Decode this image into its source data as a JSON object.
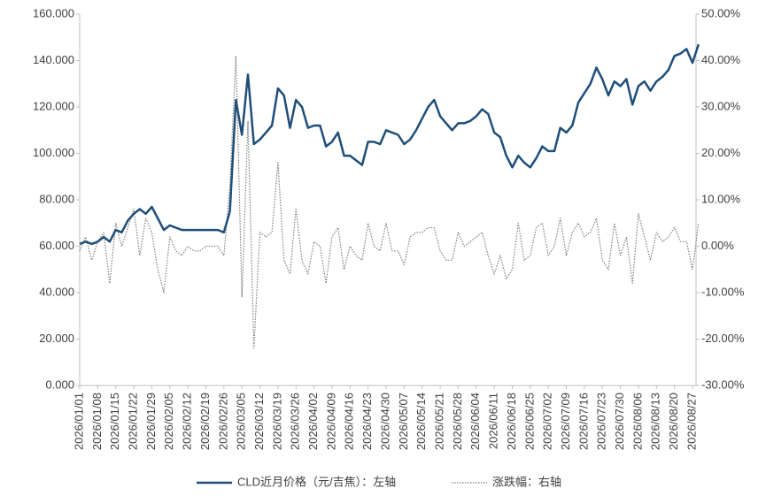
{
  "chart_data": {
    "type": "line",
    "categories": [
      "2026/01/01",
      null,
      null,
      "2026/01/08",
      null,
      null,
      "2026/01/15",
      null,
      null,
      "2026/01/22",
      null,
      null,
      "2026/01/29",
      null,
      null,
      "2026/02/05",
      null,
      null,
      "2026/02/12",
      null,
      null,
      "2026/02/19",
      null,
      null,
      "2026/02/26",
      null,
      null,
      "2026/03/05",
      null,
      null,
      "2026/03/12",
      null,
      null,
      "2026/03/19",
      null,
      null,
      "2026/03/26",
      null,
      null,
      "2026/04/02",
      null,
      null,
      "2026/04/09",
      null,
      null,
      "2026/04/16",
      null,
      null,
      "2026/04/23",
      null,
      null,
      "2026/04/30",
      null,
      null,
      "2026/05/07",
      null,
      null,
      "2026/05/14",
      null,
      null,
      "2026/05/21",
      null,
      null,
      "2026/05/28",
      null,
      null,
      "2026/06/04",
      null,
      null,
      "2026/06/11",
      null,
      null,
      "2026/06/18",
      null,
      null,
      "2026/06/25",
      null,
      null,
      "2026/07/02",
      null,
      null,
      "2026/07/09",
      null,
      null,
      "2026/07/16",
      null,
      null,
      "2026/07/23",
      null,
      null,
      "2026/07/30",
      null,
      null,
      "2026/08/06",
      null,
      null,
      "2026/08/13",
      null,
      null,
      "2026/08/20",
      null,
      null,
      "2026/08/27",
      null
    ],
    "series": [
      {
        "name": "CLD近月价格（元/吉焦）：左轴",
        "color": "#1f4e79",
        "style": "solid",
        "axis": "y",
        "values": [
          61,
          62,
          61,
          62,
          64,
          62,
          67,
          66,
          71,
          74,
          76,
          74,
          77,
          72,
          67,
          69,
          68,
          67,
          67,
          67,
          67,
          67,
          67,
          67,
          66,
          75,
          123,
          108,
          134,
          104,
          106,
          109,
          112,
          128,
          125,
          111,
          123,
          120,
          111,
          112,
          112,
          103,
          105,
          109,
          99,
          99,
          97,
          95,
          105,
          105,
          104,
          110,
          109,
          108,
          104,
          106,
          110,
          115,
          120,
          123,
          116,
          113,
          110,
          113,
          113,
          114,
          116,
          119,
          117,
          109,
          107,
          99,
          94,
          99,
          96,
          94,
          98,
          103,
          101,
          101,
          111,
          109,
          112,
          122,
          126,
          130,
          137,
          132,
          125,
          131,
          129,
          132,
          121,
          129,
          131,
          127,
          131,
          133,
          136,
          142,
          143,
          145,
          139,
          147
        ]
      },
      {
        "name": "涨跌幅：右轴",
        "color": "#7f7f7f",
        "style": "dotted",
        "axis": "y2",
        "values": [
          -1,
          2,
          -3,
          1,
          3,
          -8,
          5,
          0,
          4,
          8,
          -2,
          6,
          3,
          -5,
          -10,
          2,
          -1,
          -2,
          0,
          -1,
          -1,
          0,
          0,
          0,
          -2,
          13,
          41,
          -11,
          27,
          -22,
          3,
          2,
          3,
          18,
          -3,
          -6,
          8,
          -3,
          -6,
          1,
          0,
          -8,
          2,
          4,
          -5,
          0,
          -2,
          -3,
          5,
          0,
          -1,
          5,
          -1,
          -1,
          -4,
          2,
          3,
          3,
          4,
          4,
          -1,
          -3,
          -3,
          3,
          0,
          1,
          2,
          3,
          -2,
          -6,
          -2,
          -7,
          -5,
          5,
          -3,
          -2,
          4,
          5,
          -2,
          0,
          6,
          -2,
          3,
          5,
          2,
          3,
          6,
          -3,
          -5,
          5,
          -2,
          2,
          -8,
          7,
          2,
          -3,
          3,
          1,
          2,
          4,
          1,
          1,
          -5,
          5
        ]
      }
    ],
    "ylim": [
      0,
      160
    ],
    "yticks": [
      {
        "value": 0,
        "label": "0.000"
      },
      {
        "value": 20,
        "label": "20.000"
      },
      {
        "value": 40,
        "label": "40.000"
      },
      {
        "value": 60,
        "label": "60.000"
      },
      {
        "value": 80,
        "label": "80.000"
      },
      {
        "value": 100,
        "label": "100.000"
      },
      {
        "value": 120,
        "label": "120.000"
      },
      {
        "value": 140,
        "label": "140.000"
      },
      {
        "value": 160,
        "label": "160.000"
      }
    ],
    "y2lim": [
      -30,
      50
    ],
    "y2ticks": [
      {
        "value": -30,
        "label": "-30.00%"
      },
      {
        "value": -20,
        "label": "-20.00%"
      },
      {
        "value": -10,
        "label": "-10.00%"
      },
      {
        "value": 0,
        "label": "0.00%"
      },
      {
        "value": 10,
        "label": "10.00%"
      },
      {
        "value": 20,
        "label": "20.00%"
      },
      {
        "value": 30,
        "label": "30.00%"
      },
      {
        "value": 40,
        "label": "40.00%"
      },
      {
        "value": 50,
        "label": "50.00%"
      }
    ],
    "grid": false,
    "legend": "bottom"
  }
}
